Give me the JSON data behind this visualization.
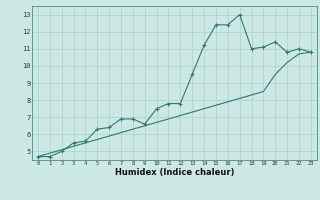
{
  "xlabel": "Humidex (Indice chaleur)",
  "bg_color": "#cce8e4",
  "line_color": "#2d7a6e",
  "grid_color": "#aad0c8",
  "series1_x": [
    0,
    1,
    2,
    3,
    4,
    5,
    6,
    7,
    8,
    9,
    10,
    11,
    12,
    13,
    14,
    15,
    16,
    17,
    18,
    19,
    20,
    21,
    22,
    23
  ],
  "series1_y": [
    4.7,
    4.7,
    5.0,
    5.5,
    5.6,
    6.3,
    6.4,
    6.9,
    6.9,
    6.6,
    7.5,
    7.8,
    7.8,
    9.5,
    11.2,
    12.4,
    12.4,
    13.0,
    11.0,
    11.1,
    11.4,
    10.8,
    11.0,
    10.8
  ],
  "series2_x": [
    0,
    1,
    2,
    3,
    4,
    5,
    6,
    7,
    8,
    9,
    10,
    11,
    12,
    13,
    14,
    15,
    16,
    17,
    18,
    19,
    20,
    21,
    22,
    23
  ],
  "series2_y": [
    4.7,
    4.9,
    5.1,
    5.3,
    5.5,
    5.7,
    5.9,
    6.1,
    6.3,
    6.5,
    6.7,
    6.9,
    7.1,
    7.3,
    7.5,
    7.7,
    7.9,
    8.1,
    8.3,
    8.5,
    9.5,
    10.2,
    10.7,
    10.8
  ],
  "xlim": [
    -0.5,
    23.5
  ],
  "ylim": [
    4.5,
    13.5
  ],
  "yticks": [
    5,
    6,
    7,
    8,
    9,
    10,
    11,
    12,
    13
  ],
  "xticks": [
    0,
    1,
    2,
    3,
    4,
    5,
    6,
    7,
    8,
    9,
    10,
    11,
    12,
    13,
    14,
    15,
    16,
    17,
    18,
    19,
    20,
    21,
    22,
    23
  ]
}
